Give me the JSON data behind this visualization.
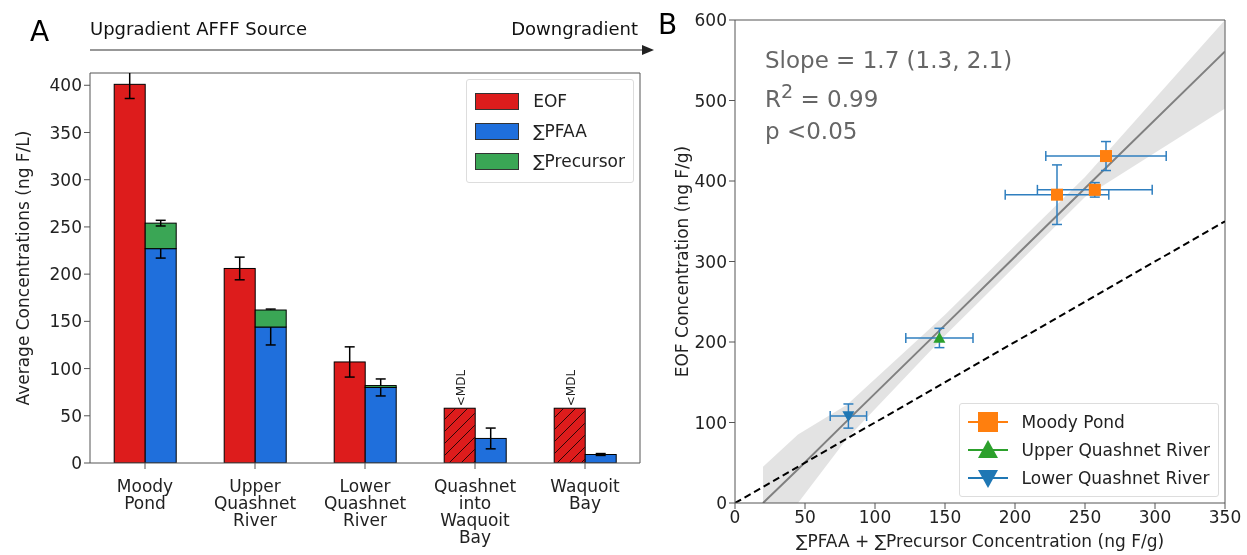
{
  "chart_data": [
    {
      "type": "bar",
      "title": "A",
      "ylabel": "Average Concentrations (ng F/L)",
      "categories": [
        "Moody Pond",
        "Upper Quashnet River",
        "Lower Quashnet River",
        "Quashnet into Waquoit Bay",
        "Waquoit Bay"
      ],
      "series": [
        {
          "name": "EOF",
          "color": "#dd1c1c",
          "values": [
            401,
            206,
            107,
            58,
            58
          ],
          "errors": [
            15,
            12,
            16,
            null,
            null
          ]
        },
        {
          "name": "∑PFAA",
          "color": "#1f6fdc",
          "values": [
            227,
            144,
            80,
            26,
            9
          ],
          "errors": [
            10,
            19,
            9,
            11,
            1
          ]
        },
        {
          "name": "∑Precursor",
          "color": "#3aa655",
          "values": [
            27,
            18,
            2,
            null,
            null
          ],
          "base": [
            227,
            144,
            80,
            null,
            null
          ],
          "errors": [
            3,
            null,
            null,
            null,
            null
          ]
        }
      ],
      "ylim": [
        0,
        413
      ],
      "yticks": [
        0,
        50,
        100,
        150,
        200,
        250,
        300,
        350,
        400
      ],
      "legend": "top right",
      "annotations": [
        "Upgradient AFFF Source",
        "Downgradient",
        {
          "text": "<MDL",
          "x": "Quashnet into Waquoit Bay",
          "y": 58
        },
        {
          "text": "<MDL",
          "x": "Waquoit Bay",
          "y": 58
        }
      ]
    },
    {
      "type": "scatter",
      "title": "B",
      "xlabel": "∑PFAA + ∑Precursor Concentration (ng F/g)",
      "ylabel": "EOF Concentration (ng F/g)",
      "xlim": [
        0,
        350
      ],
      "xticks": [
        0,
        50,
        100,
        150,
        200,
        250,
        300,
        350
      ],
      "ylim": [
        0,
        600
      ],
      "yticks": [
        0,
        100,
        200,
        300,
        400,
        500,
        600
      ],
      "legend": "bottom right",
      "annotations": [
        "Slope = 1.7 (1.3, 2.1)",
        "R$^{2}$ = 0.99",
        "p <0.05"
      ],
      "series": [
        {
          "name": "Moody Pond",
          "color": "#ff7f0e",
          "marker": "square",
          "x": [
            265,
            230,
            257
          ],
          "values": [
            431,
            383,
            389
          ],
          "errors": [
            18,
            37,
            9
          ],
          "xerrors": [
            43,
            37,
            41
          ]
        },
        {
          "name": "Upper Quashnet River",
          "color": "#2ca02c",
          "marker": "triangle",
          "x": [
            146
          ],
          "values": [
            205
          ],
          "errors": [
            12
          ],
          "xerrors": [
            24
          ]
        },
        {
          "name": "Lower Quashnet River",
          "color": "#1f77b4",
          "marker": "triangle-down",
          "x": [
            81
          ],
          "values": [
            108
          ],
          "errors": [
            15
          ],
          "xerrors": [
            13
          ]
        },
        {
          "type": "line",
          "color": "#808080",
          "x": [
            20,
            45,
            80,
            150,
            250,
            350
          ],
          "values": [
            0,
            42,
            102,
            221,
            391,
            561
          ],
          "lower": [
            0,
            0,
            80,
            208,
            380,
            490
          ],
          "upper": [
            45,
            85,
            122,
            234,
            405,
            600
          ]
        },
        {
          "type": "line",
          "color": "#000000",
          "line_style": "dashed",
          "x": [
            0,
            350
          ],
          "values": [
            0,
            350
          ]
        }
      ]
    }
  ]
}
